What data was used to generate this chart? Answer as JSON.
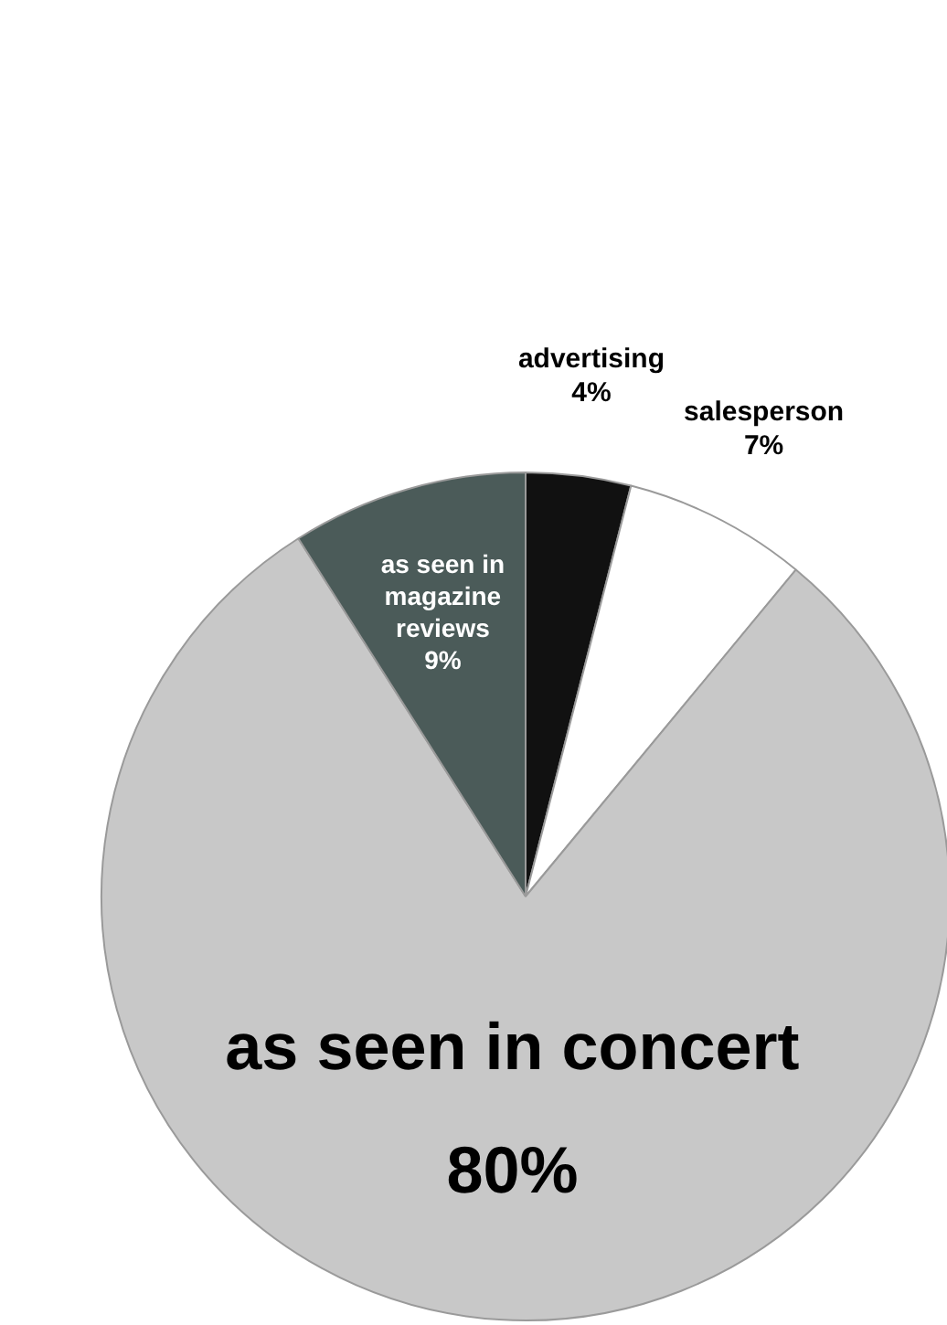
{
  "chart_data": {
    "type": "pie",
    "categories": [
      "advertising",
      "salesperson",
      "as seen in concert",
      "as seen in magazine reviews"
    ],
    "values": [
      4,
      7,
      80,
      9
    ],
    "colors": [
      "#111111",
      "#ffffff",
      "#c8c8c8",
      "#4b5b59"
    ],
    "value_labels": [
      "4%",
      "7%",
      "80%",
      "9%"
    ]
  }
}
